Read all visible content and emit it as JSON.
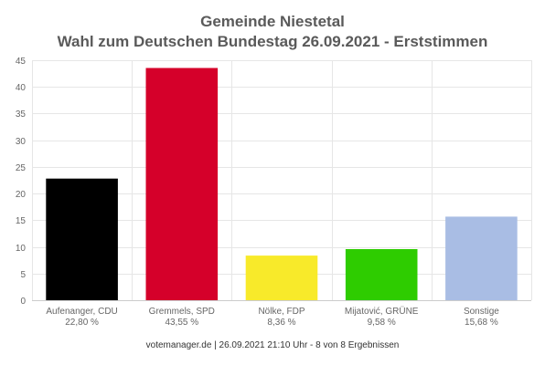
{
  "chart_data": {
    "type": "bar",
    "title": "Gemeinde Niestetal",
    "subtitle": "Wahl zum Deutschen Bundestag 26.09.2021  - Erststimmen",
    "categories": [
      "Aufenanger, CDU",
      "Gremmels, SPD",
      "Nölke, FDP",
      "Mijatović, GRÜNE",
      "Sonstige"
    ],
    "values": [
      22.8,
      43.55,
      8.36,
      9.58,
      15.68
    ],
    "value_labels": [
      "22,80 %",
      "43,55 %",
      "8,36 %",
      "9,58 %",
      "15,68 %"
    ],
    "colors": [
      "#000000",
      "#d5002a",
      "#f8ea2a",
      "#2ecc00",
      "#a9bde4"
    ],
    "ylim": [
      0,
      45
    ],
    "yticks": [
      0,
      5,
      10,
      15,
      20,
      25,
      30,
      35,
      40,
      45
    ],
    "xlabel": "",
    "ylabel": "",
    "grid": true,
    "legend": "none"
  },
  "footer": "votemanager.de | 26.09.2021 21:10 Uhr - 8 von 8 Ergebnissen"
}
